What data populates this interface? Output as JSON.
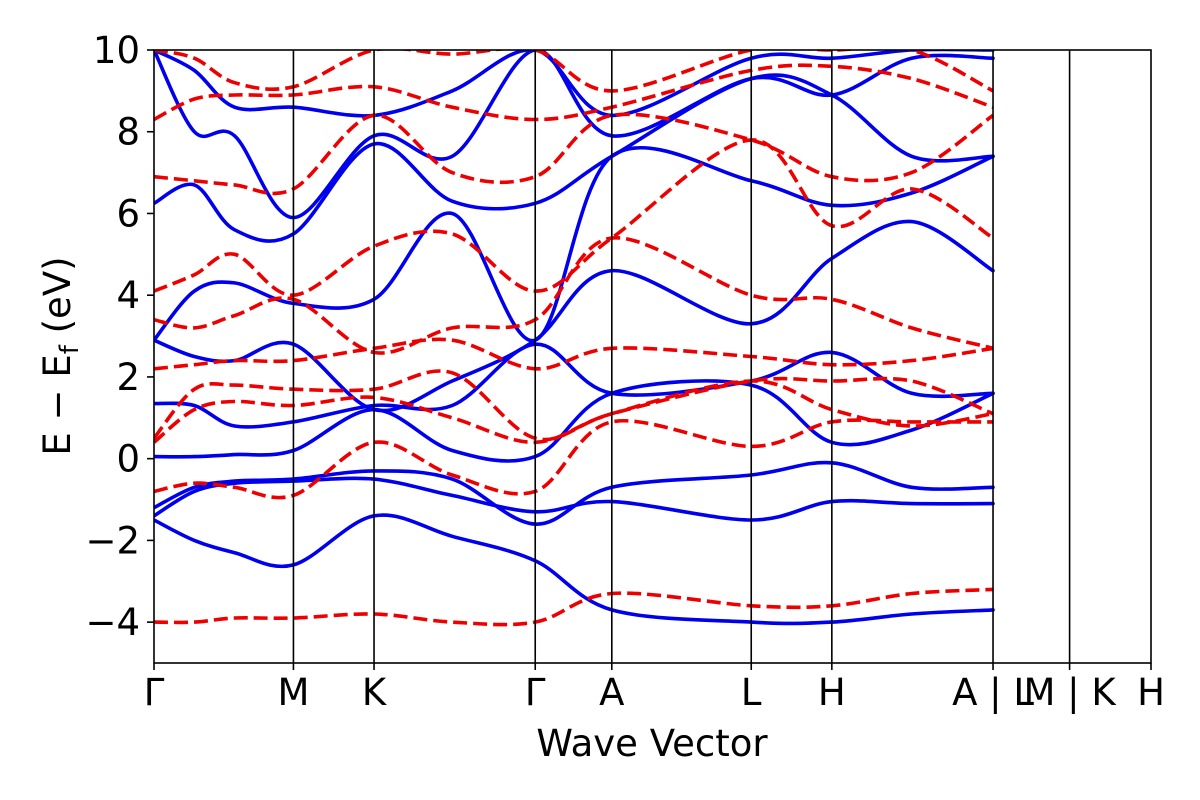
{
  "chart_data": {
    "type": "line",
    "title": "",
    "xlabel": "Wave Vector",
    "ylabel": "E − E",
    "ylabel_sub": "f",
    "ylabel_unit": " (eV)",
    "ylim": [
      -5,
      10
    ],
    "y_ticks": [
      {
        "value": -4,
        "label": "−4"
      },
      {
        "value": -2,
        "label": "−2"
      },
      {
        "value": 0,
        "label": "0"
      },
      {
        "value": 2,
        "label": "2"
      },
      {
        "value": 4,
        "label": "4"
      },
      {
        "value": 6,
        "label": "6"
      },
      {
        "value": 8,
        "label": "8"
      },
      {
        "value": 10,
        "label": "10"
      }
    ],
    "xlim": [
      0,
      12.37
    ],
    "k_points": [
      {
        "label": "Γ",
        "x": 0.0
      },
      {
        "label": "M",
        "x": 1.73
      },
      {
        "label": "K",
        "x": 2.73
      },
      {
        "label": "Γ",
        "x": 4.73
      },
      {
        "label": "A",
        "x": 5.68
      },
      {
        "label": "L",
        "x": 7.41
      },
      {
        "label": "H",
        "x": 8.41
      },
      {
        "label": "A | L",
        "x": 10.41
      },
      {
        "label": "M | K",
        "x": 11.36
      },
      {
        "label": "H",
        "x": 12.37
      }
    ],
    "series": [
      {
        "spin": "up",
        "color": "#0000ee",
        "style": "solid",
        "bands": [
          {
            "x": [
              0,
              0.5,
              1.0,
              1.73,
              2.73,
              3.7,
              4.73,
              5.68,
              7.41,
              8.41,
              9.4,
              10.41
            ],
            "y": [
              -1.5,
              -2.0,
              -2.3,
              -2.6,
              -1.4,
              -1.9,
              -2.5,
              -3.7,
              -4.0,
              -4.0,
              -3.8,
              -3.7
            ]
          },
          {
            "x": [
              0,
              0.5,
              1.0,
              1.73,
              2.73,
              3.7,
              4.73,
              5.68,
              7.41,
              8.41,
              9.4,
              10.41
            ],
            "y": [
              -1.4,
              -0.8,
              -0.6,
              -0.55,
              -0.5,
              -0.9,
              -1.3,
              -1.05,
              -1.5,
              -1.05,
              -1.1,
              -1.1
            ]
          },
          {
            "x": [
              0,
              0.5,
              1.0,
              1.73,
              2.73,
              3.7,
              4.73,
              5.68,
              7.41,
              8.41,
              9.4,
              10.41
            ],
            "y": [
              -1.2,
              -0.7,
              -0.55,
              -0.5,
              -0.3,
              -0.5,
              -1.6,
              -0.7,
              -0.4,
              -0.1,
              -0.7,
              -0.7
            ]
          },
          {
            "x": [
              0,
              0.5,
              1.0,
              1.73,
              2.73,
              3.7,
              4.73,
              5.68,
              7.41,
              8.41,
              9.4,
              10.41
            ],
            "y": [
              0.05,
              0.05,
              0.1,
              0.2,
              1.2,
              0.2,
              0.05,
              1.6,
              1.8,
              0.4,
              0.7,
              1.6
            ]
          },
          {
            "x": [
              0,
              0.5,
              1.0,
              1.73,
              2.73,
              3.7,
              4.73,
              5.68,
              7.41,
              8.41,
              9.4,
              10.41
            ],
            "y": [
              1.35,
              1.3,
              0.8,
              0.9,
              1.3,
              1.3,
              2.8,
              1.6,
              1.9,
              2.6,
              1.6,
              1.6
            ]
          },
          {
            "x": [
              0,
              0.5,
              1.0,
              1.73,
              2.73,
              3.7,
              4.73,
              5.68,
              7.41,
              8.41,
              9.4,
              10.41
            ],
            "y": [
              2.9,
              2.5,
              2.4,
              2.8,
              1.2,
              1.9,
              2.9,
              4.6,
              3.3,
              4.9,
              5.8,
              4.6
            ]
          },
          {
            "x": [
              0,
              0.5,
              1.0,
              1.73,
              2.73,
              3.7,
              4.73,
              5.68,
              7.41,
              8.41,
              9.4,
              10.41
            ],
            "y": [
              2.9,
              4.1,
              4.3,
              3.8,
              3.9,
              6.0,
              2.9,
              7.4,
              6.8,
              6.2,
              6.5,
              7.4
            ]
          },
          {
            "x": [
              0,
              0.5,
              1.0,
              1.73,
              2.73,
              3.7,
              4.73,
              5.68,
              7.41,
              8.41,
              9.4,
              10.41
            ],
            "y": [
              6.25,
              6.7,
              5.6,
              5.5,
              7.7,
              6.3,
              6.25,
              7.4,
              9.3,
              8.9,
              7.4,
              7.4
            ]
          },
          {
            "x": [
              0,
              0.5,
              1.0,
              1.73,
              2.73,
              3.7,
              4.73,
              5.68,
              7.41,
              8.41,
              9.4,
              10.41
            ],
            "y": [
              10.0,
              8.0,
              7.9,
              5.9,
              7.9,
              7.4,
              10.0,
              7.9,
              9.3,
              8.9,
              9.8,
              9.8
            ]
          },
          {
            "x": [
              0,
              0.5,
              1.0,
              1.73,
              2.73,
              3.7,
              4.73,
              5.68,
              7.41,
              8.41,
              9.4,
              10.41
            ],
            "y": [
              10.0,
              9.5,
              8.6,
              8.6,
              8.4,
              9.0,
              10.0,
              8.4,
              9.8,
              9.8,
              10.0,
              10.0
            ]
          }
        ]
      },
      {
        "spin": "down",
        "color": "#ee0000",
        "style": "dashed",
        "bands": [
          {
            "x": [
              0,
              0.5,
              1.0,
              1.73,
              2.73,
              3.7,
              4.73,
              5.68,
              7.41,
              8.41,
              9.4,
              10.41
            ],
            "y": [
              -4.0,
              -4.0,
              -3.9,
              -3.9,
              -3.8,
              -4.0,
              -4.0,
              -3.3,
              -3.6,
              -3.6,
              -3.3,
              -3.2
            ]
          },
          {
            "x": [
              0,
              0.5,
              1.0,
              1.73,
              2.73,
              3.7,
              4.73,
              5.68,
              7.41,
              8.41,
              9.4,
              10.41
            ],
            "y": [
              -0.8,
              -0.6,
              -0.7,
              -0.9,
              0.4,
              -0.4,
              -0.8,
              0.9,
              0.3,
              0.9,
              0.9,
              0.9
            ]
          },
          {
            "x": [
              0,
              0.5,
              1.0,
              1.73,
              2.73,
              3.7,
              4.73,
              5.68,
              7.41,
              8.41,
              9.4,
              10.41
            ],
            "y": [
              0.4,
              1.2,
              1.4,
              1.3,
              1.5,
              1.0,
              0.4,
              1.1,
              1.9,
              1.2,
              0.8,
              1.1
            ]
          },
          {
            "x": [
              0,
              0.5,
              1.0,
              1.73,
              2.73,
              3.7,
              4.73,
              5.68,
              7.41,
              8.41,
              9.4,
              10.41
            ],
            "y": [
              0.5,
              1.7,
              1.8,
              1.7,
              1.7,
              2.1,
              0.5,
              1.1,
              1.9,
              1.9,
              1.9,
              1.1
            ]
          },
          {
            "x": [
              0,
              0.5,
              1.0,
              1.73,
              2.73,
              3.7,
              4.73,
              5.68,
              7.41,
              8.41,
              9.4,
              10.41
            ],
            "y": [
              2.2,
              2.3,
              2.4,
              2.4,
              2.7,
              2.9,
              2.2,
              2.7,
              2.5,
              2.3,
              2.4,
              2.7
            ]
          },
          {
            "x": [
              0,
              0.5,
              1.0,
              1.73,
              2.73,
              3.7,
              4.73,
              5.68,
              7.41,
              8.41,
              9.4,
              10.41
            ],
            "y": [
              3.4,
              3.2,
              3.5,
              3.9,
              2.6,
              3.2,
              3.4,
              5.4,
              4.0,
              3.9,
              3.2,
              2.7
            ]
          },
          {
            "x": [
              0,
              0.5,
              1.0,
              1.73,
              2.73,
              3.7,
              4.73,
              5.68,
              7.41,
              8.41,
              9.4,
              10.41
            ],
            "y": [
              4.1,
              4.5,
              5.0,
              4.0,
              5.2,
              5.5,
              4.1,
              5.4,
              7.8,
              5.7,
              6.6,
              5.4
            ]
          },
          {
            "x": [
              0,
              0.5,
              1.0,
              1.73,
              2.73,
              3.7,
              4.73,
              5.68,
              7.41,
              8.41,
              9.4,
              10.41
            ],
            "y": [
              6.9,
              6.8,
              6.7,
              6.6,
              8.4,
              7.0,
              6.9,
              8.4,
              7.8,
              6.9,
              7.0,
              8.4
            ]
          },
          {
            "x": [
              0,
              0.5,
              1.0,
              1.73,
              2.73,
              3.7,
              4.73,
              5.68,
              7.41,
              8.41,
              9.4,
              10.41
            ],
            "y": [
              8.3,
              8.8,
              8.9,
              8.9,
              9.1,
              8.6,
              8.3,
              8.6,
              9.5,
              9.6,
              9.3,
              8.6
            ]
          },
          {
            "x": [
              0,
              0.5,
              1.0,
              1.73,
              2.73,
              3.7,
              4.73,
              5.68,
              7.41,
              8.41,
              9.4,
              10.41
            ],
            "y": [
              10.0,
              9.8,
              9.2,
              9.1,
              10.0,
              9.9,
              10.0,
              9.0,
              10.0,
              10.0,
              10.0,
              9.0
            ]
          }
        ]
      }
    ]
  }
}
